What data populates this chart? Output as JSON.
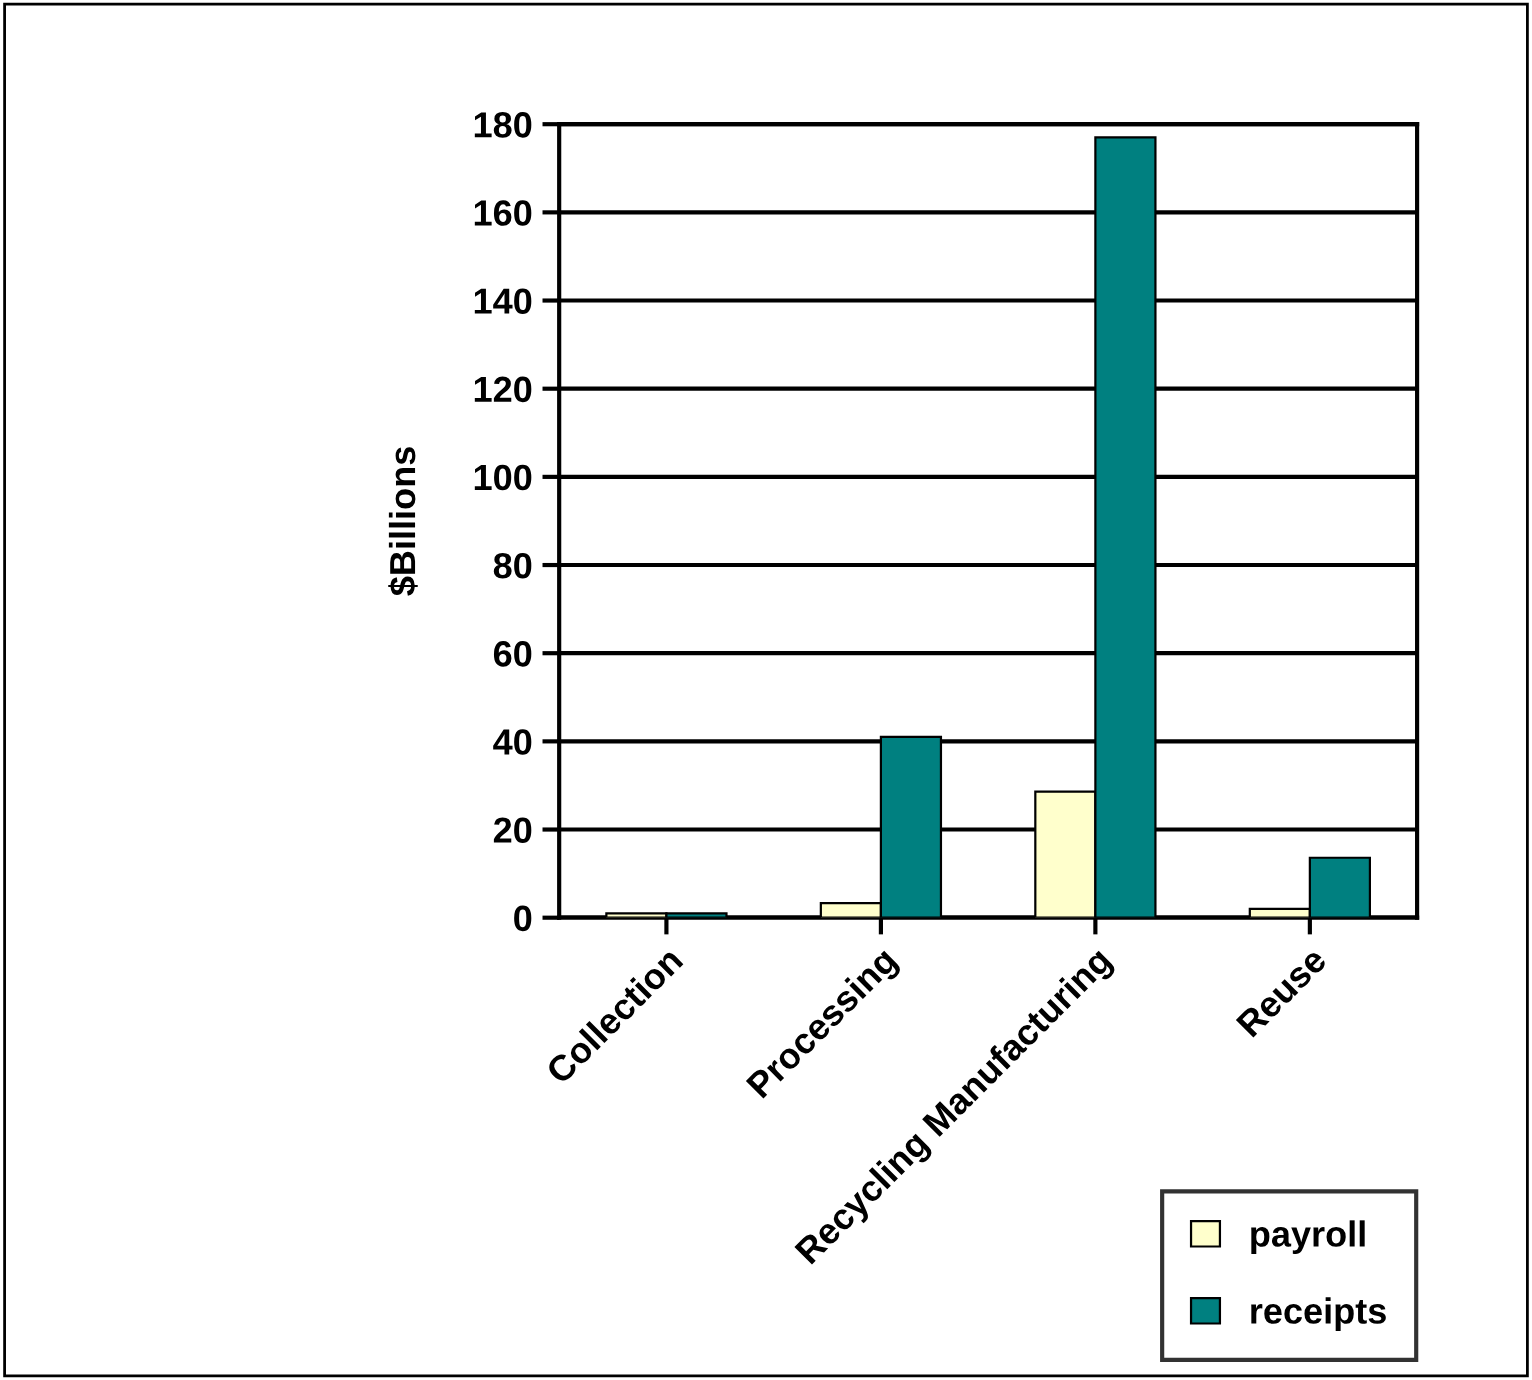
{
  "chart_data": {
    "type": "bar",
    "ylabel": "$Billions",
    "categories": [
      "Collection",
      "Processing",
      "Recycling Manufacturing",
      "Reuse"
    ],
    "series": [
      {
        "name": "payroll",
        "color": "#ffffcc",
        "values": [
          1,
          3.3,
          28.6,
          2
        ]
      },
      {
        "name": "receipts",
        "color": "#008080",
        "values": [
          1,
          41,
          177,
          13.6
        ]
      }
    ],
    "ylim": [
      0,
      180
    ],
    "yticks": [
      0,
      20,
      40,
      60,
      80,
      100,
      120,
      140,
      160,
      180
    ],
    "grid": "y",
    "legend": "bottom right"
  }
}
